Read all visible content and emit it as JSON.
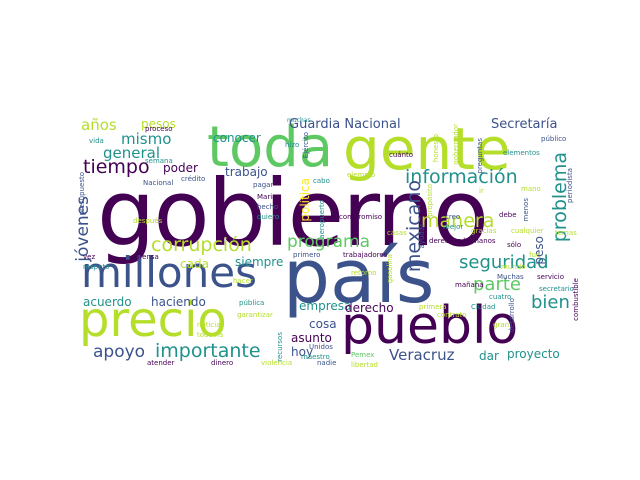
{
  "palette": {
    "dark_purple": "#440154",
    "indigo": "#3b528b",
    "teal": "#21918c",
    "green": "#5ec962",
    "lime": "#b5de2b",
    "yellow": "#fde725"
  },
  "words": [
    {
      "text": "gobierno",
      "color": "#440154"
    },
    {
      "text": "país",
      "color": "#3b528b"
    },
    {
      "text": "gente",
      "color": "#b5de2b"
    },
    {
      "text": "toda",
      "color": "#5ec962"
    },
    {
      "text": "pueblo",
      "color": "#440154"
    },
    {
      "text": "precio",
      "color": "#b5de2b"
    },
    {
      "text": "millones",
      "color": "#3b528b"
    },
    {
      "text": "tiempo",
      "color": "#440154"
    },
    {
      "text": "información",
      "color": "#21918c"
    },
    {
      "text": "corrupción",
      "color": "#b5de2b"
    },
    {
      "text": "manera",
      "color": "#b5de2b"
    },
    {
      "text": "mexicano",
      "color": "#3b528b"
    },
    {
      "text": "programa",
      "color": "#5ec962"
    },
    {
      "text": "seguridad",
      "color": "#21918c"
    },
    {
      "text": "importante",
      "color": "#21918c"
    },
    {
      "text": "problema",
      "color": "#21918c"
    },
    {
      "text": "apoyo",
      "color": "#3b528b"
    },
    {
      "text": "parte",
      "color": "#5ec962"
    },
    {
      "text": "bien",
      "color": "#21918c"
    },
    {
      "text": "jóvenes",
      "color": "#3b528b"
    },
    {
      "text": "Veracruz",
      "color": "#3b528b"
    },
    {
      "text": "años",
      "color": "#b5de2b"
    },
    {
      "text": "mismo",
      "color": "#21918c"
    },
    {
      "text": "general",
      "color": "#21918c"
    },
    {
      "text": "Guardia Nacional",
      "color": "#3b528b"
    },
    {
      "text": "Secretaría",
      "color": "#3b528b"
    },
    {
      "text": "pesos",
      "color": "#b5de2b"
    },
    {
      "text": "conocer",
      "color": "#21918c"
    },
    {
      "text": "poder",
      "color": "#440154"
    },
    {
      "text": "trabajo",
      "color": "#3b528b"
    },
    {
      "text": "siempre",
      "color": "#21918c"
    },
    {
      "text": "cada",
      "color": "#b5de2b"
    },
    {
      "text": "haciendo",
      "color": "#3b528b"
    },
    {
      "text": "acuerdo",
      "color": "#21918c"
    },
    {
      "text": "empresa",
      "color": "#21918c"
    },
    {
      "text": "derecho",
      "color": "#440154"
    },
    {
      "text": "cosa",
      "color": "#3b528b"
    },
    {
      "text": "asunto",
      "color": "#440154"
    },
    {
      "text": "hoy",
      "color": "#3b528b"
    },
    {
      "text": "dar",
      "color": "#21918c"
    },
    {
      "text": "proyecto",
      "color": "#21918c"
    },
    {
      "text": "peso",
      "color": "#3b528b"
    },
    {
      "text": "política",
      "color": "#fde725"
    },
    {
      "text": "derechos humanos",
      "color": "#440154"
    },
    {
      "text": "primero",
      "color": "#3b528b"
    },
    {
      "text": "trabajadores",
      "color": "#440154"
    },
    {
      "text": "compromiso",
      "color": "#440154"
    },
    {
      "text": "creo",
      "color": "#3b528b"
    },
    {
      "text": "mejor",
      "color": "#21918c"
    },
    {
      "text": "debe",
      "color": "#440154"
    },
    {
      "text": "sólo",
      "color": "#440154"
    },
    {
      "text": "ayudar",
      "color": "#3b528b"
    },
    {
      "text": "Ejército",
      "color": "#3b528b"
    },
    {
      "text": "cuánto",
      "color": "#440154"
    },
    {
      "text": "preguntas",
      "color": "#3b528b"
    },
    {
      "text": "elementos",
      "color": "#21918c"
    },
    {
      "text": "público",
      "color": "#3b528b"
    },
    {
      "text": "periodista",
      "color": "#3b528b"
    },
    {
      "text": "menos",
      "color": "#3b528b"
    },
    {
      "text": "servicio",
      "color": "#440154"
    },
    {
      "text": "secretario",
      "color": "#21918c"
    },
    {
      "text": "combustible",
      "color": "#440154"
    },
    {
      "text": "Muchas",
      "color": "#3b528b"
    },
    {
      "text": "mañana",
      "color": "#440154"
    },
    {
      "text": "cuatro",
      "color": "#21918c"
    },
    {
      "text": "desarrollo",
      "color": "#3b528b"
    },
    {
      "text": "contrato",
      "color": "#b5de2b"
    },
    {
      "text": "Ciudad",
      "color": "#21918c"
    },
    {
      "text": "primera",
      "color": "#b5de2b"
    },
    {
      "text": "gran",
      "color": "#b5de2b"
    },
    {
      "text": "libertad",
      "color": "#b5de2b"
    },
    {
      "text": "Pemex",
      "color": "#5ec962"
    },
    {
      "text": "nadie",
      "color": "#3b528b"
    },
    {
      "text": "violencia",
      "color": "#b5de2b"
    },
    {
      "text": "dinero",
      "color": "#440154"
    },
    {
      "text": "atender",
      "color": "#440154"
    },
    {
      "text": "todavía",
      "color": "#b5de2b"
    },
    {
      "text": "noticia",
      "color": "#b5de2b"
    },
    {
      "text": "pública",
      "color": "#21918c"
    },
    {
      "text": "prensa",
      "color": "#440154"
    },
    {
      "text": "respeto",
      "color": "#21918c"
    },
    {
      "text": "vez",
      "color": "#440154"
    },
    {
      "text": "después",
      "color": "#b5de2b"
    },
    {
      "text": "presupuesto",
      "color": "#3b528b"
    },
    {
      "text": "Nacional",
      "color": "#3b528b"
    },
    {
      "text": "crédito",
      "color": "#3b528b"
    },
    {
      "text": "semana",
      "color": "#21918c"
    },
    {
      "text": "proceso",
      "color": "#440154"
    },
    {
      "text": "vida",
      "color": "#21918c"
    },
    {
      "text": "muchas",
      "color": "#21918c"
    },
    {
      "text": "hizo",
      "color": "#21918c"
    },
    {
      "text": "cabo",
      "color": "#21918c"
    },
    {
      "text": "ejemplo",
      "color": "#b5de2b"
    },
    {
      "text": "gobernador",
      "color": "#b5de2b"
    },
    {
      "text": "honesto",
      "color": "#b5de2b"
    },
    {
      "text": "quiero",
      "color": "#21918c"
    },
    {
      "text": "hecho",
      "color": "#3b528b"
    },
    {
      "text": "Marina",
      "color": "#440154"
    },
    {
      "text": "pagar",
      "color": "#3b528b"
    },
    {
      "text": "aeropuerto",
      "color": "#21918c"
    },
    {
      "text": "maestro",
      "color": "#21918c"
    },
    {
      "text": "recursos",
      "color": "#21918c"
    },
    {
      "text": "Unidos",
      "color": "#3b528b"
    },
    {
      "text": "garantizar",
      "color": "#b5de2b"
    },
    {
      "text": "retorno",
      "color": "#b5de2b"
    },
    {
      "text": "gasolina",
      "color": "#b5de2b"
    },
    {
      "text": "propósito",
      "color": "#b5de2b"
    },
    {
      "text": "casas",
      "color": "#b5de2b"
    },
    {
      "text": "ir",
      "color": "#b5de2b"
    },
    {
      "text": "mano",
      "color": "#b5de2b"
    },
    {
      "text": "gracias",
      "color": "#b5de2b"
    },
    {
      "text": "cualquier",
      "color": "#b5de2b"
    },
    {
      "text": "temas",
      "color": "#b5de2b"
    },
    {
      "text": "mundo",
      "color": "#b5de2b"
    },
    {
      "text": "fue",
      "color": "#b5de2b"
    },
    {
      "text": "hacer",
      "color": "#b5de2b"
    }
  ]
}
